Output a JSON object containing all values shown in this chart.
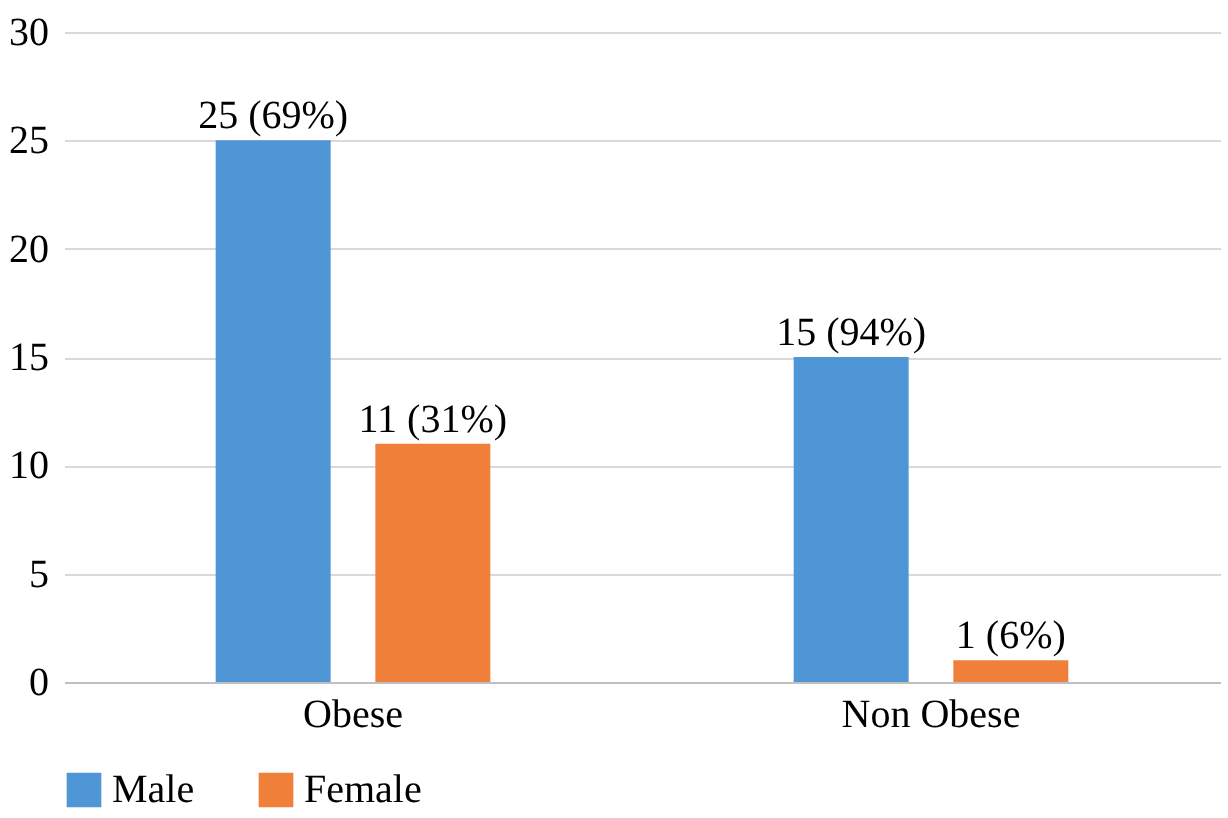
{
  "chart_data": {
    "type": "bar",
    "categories": [
      "Obese",
      "Non Obese"
    ],
    "series": [
      {
        "name": "Male",
        "color": "#4e96d6",
        "values": [
          25,
          15
        ],
        "value_labels": [
          "25 (69%)",
          "15 (94%)"
        ]
      },
      {
        "name": "Female",
        "color": "#f07f3a",
        "values": [
          11,
          1
        ],
        "value_labels": [
          "11 (31%)",
          "1 (6%)"
        ]
      }
    ],
    "ylim": [
      0,
      30
    ],
    "yticks": [
      0,
      5,
      10,
      15,
      20,
      25,
      30
    ],
    "grid": "y",
    "legend": "bottom"
  }
}
